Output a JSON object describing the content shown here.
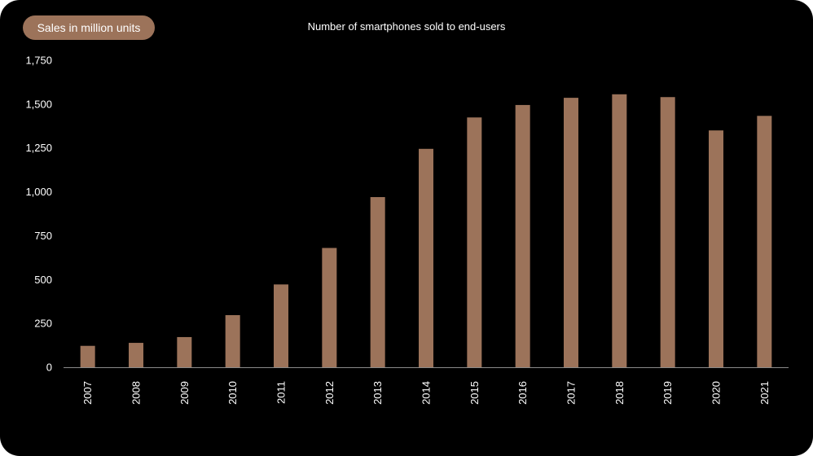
{
  "colors": {
    "background": "#000000",
    "bar": "#9c735a",
    "pill": "#9c735a",
    "axis": "#8a8a8a",
    "text": "#ffffff"
  },
  "chart_data": {
    "type": "bar",
    "title": "Number of smartphones sold to end-users",
    "unit_label": "Sales in million units",
    "xlabel": "",
    "ylabel": "",
    "ylim": [
      0,
      1750
    ],
    "yticks": [
      0,
      250,
      500,
      750,
      1000,
      1250,
      1500,
      1750
    ],
    "ytick_labels": [
      "0",
      "250",
      "500",
      "750",
      "1,000",
      "1,250",
      "1,500",
      "1,750"
    ],
    "grid": false,
    "legend": "none",
    "categories": [
      "2007",
      "2008",
      "2009",
      "2010",
      "2011",
      "2012",
      "2013",
      "2014",
      "2015",
      "2016",
      "2017",
      "2018",
      "2019",
      "2020",
      "2021"
    ],
    "values": [
      122,
      139,
      172,
      297,
      472,
      680,
      970,
      1245,
      1424,
      1495,
      1536,
      1556,
      1540,
      1350,
      1433
    ]
  }
}
